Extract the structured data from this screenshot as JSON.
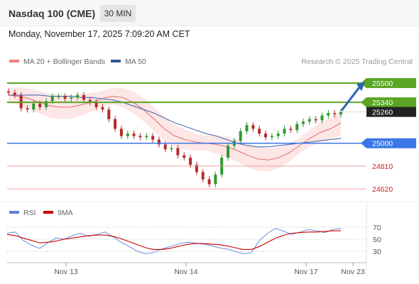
{
  "header": {
    "title": "Nasdaq 100 (CME)",
    "timeframe": "30 MIN"
  },
  "datetime": "Monday, November 17, 2025 7:09:20 AM CET",
  "legend": {
    "ma20": "MA 20 + Bollinger Bands",
    "ma50": "MA 50",
    "credit": "Research © 2025 Trading Central"
  },
  "rsi_legend": {
    "rsi": "RSI",
    "ma9": "9MA"
  },
  "colors": {
    "up": "#2e9a2e",
    "down": "#b52a2a",
    "ma20": "#e07070",
    "bollinger": "#fde2e2",
    "ma50": "#4a6fb5",
    "resistance": "#5aa624",
    "support": "#f0a0a0",
    "pivot": "#3b78e7",
    "current": "#222222",
    "arrow": "#2f63b5",
    "rsi": "#6b8ce0",
    "rsi_ma": "#cc0000"
  },
  "chart_data": [
    {
      "type": "candlestick",
      "title": "",
      "xlabel": "",
      "ylabel": "",
      "ylim": [
        24550,
        25600
      ],
      "x_ticks": [
        "Nov 13",
        "Nov 14",
        "Nov 17",
        "Nov 23"
      ],
      "levels": [
        {
          "value": 25500,
          "label": "25500",
          "kind": "resistance"
        },
        {
          "value": 25340,
          "label": "25340",
          "kind": "resistance"
        },
        {
          "value": 25260,
          "label": "25260",
          "kind": "current"
        },
        {
          "value": 25000,
          "label": "25000",
          "kind": "pivot"
        },
        {
          "value": 24810,
          "label": "24810",
          "kind": "support"
        },
        {
          "value": 24620,
          "label": "24620",
          "kind": "support"
        }
      ],
      "series": [
        {
          "name": "MA 20 + Bollinger Bands",
          "values": [
            25400,
            25390,
            25370,
            25340,
            25310,
            25300,
            25300,
            25320,
            25340,
            25370,
            25390,
            25380,
            25340,
            25280,
            25200,
            25120,
            25060,
            25030,
            25010,
            25000,
            24990,
            24970,
            24940,
            24900,
            24870,
            24860,
            24880,
            24920,
            24980,
            25040,
            25090,
            25120,
            25170
          ]
        },
        {
          "name": "MA 50",
          "values": [
            25400,
            25400,
            25400,
            25400,
            25390,
            25390,
            25390,
            25380,
            25380,
            25370,
            25360,
            25340,
            25310,
            25280,
            25250,
            25210,
            25170,
            25140,
            25110,
            25080,
            25060,
            25030,
            25000,
            24980,
            24970,
            24970,
            24980,
            24990,
            25000,
            25010,
            25020,
            25030,
            25040
          ]
        }
      ],
      "ohlc_series": {
        "name": "Nasdaq 100 (CME)",
        "note": "30-minute candles",
        "close": [
          25420,
          25400,
          25290,
          25280,
          25330,
          25300,
          25350,
          25390,
          25390,
          25370,
          25380,
          25400,
          25360,
          25340,
          25300,
          25280,
          25200,
          25120,
          25060,
          25080,
          25060,
          25050,
          25060,
          25030,
          24990,
          24950,
          24960,
          24900,
          24880,
          24820,
          24760,
          24700,
          24660,
          24740,
          24880,
          24980,
          25020,
          25100,
          25150,
          25120,
          25080,
          25050,
          25060,
          25080,
          25120,
          25110,
          25160,
          25180,
          25200,
          25190,
          25230,
          25250,
          25240,
          25260
        ]
      }
    },
    {
      "type": "line",
      "title": "",
      "xlabel": "",
      "ylabel": "",
      "ylim": [
        20,
        75
      ],
      "y_ticks": [
        30,
        50,
        70
      ],
      "series": [
        {
          "name": "RSI",
          "values": [
            60,
            62,
            48,
            40,
            35,
            44,
            52,
            50,
            56,
            60,
            55,
            58,
            62,
            54,
            45,
            38,
            30,
            26,
            28,
            34,
            38,
            42,
            45,
            44,
            42,
            40,
            36,
            34,
            30,
            26,
            28,
            48,
            60,
            68,
            63,
            58,
            62,
            66,
            64,
            61,
            66,
            68
          ]
        },
        {
          "name": "9MA",
          "values": [
            58,
            56,
            52,
            48,
            44,
            45,
            47,
            50,
            52,
            54,
            56,
            57,
            57,
            55,
            51,
            46,
            41,
            36,
            33,
            33,
            35,
            38,
            41,
            43,
            43,
            42,
            41,
            39,
            36,
            33,
            33,
            38,
            45,
            52,
            57,
            60,
            61,
            62,
            62,
            63,
            64,
            64
          ]
        }
      ]
    }
  ]
}
